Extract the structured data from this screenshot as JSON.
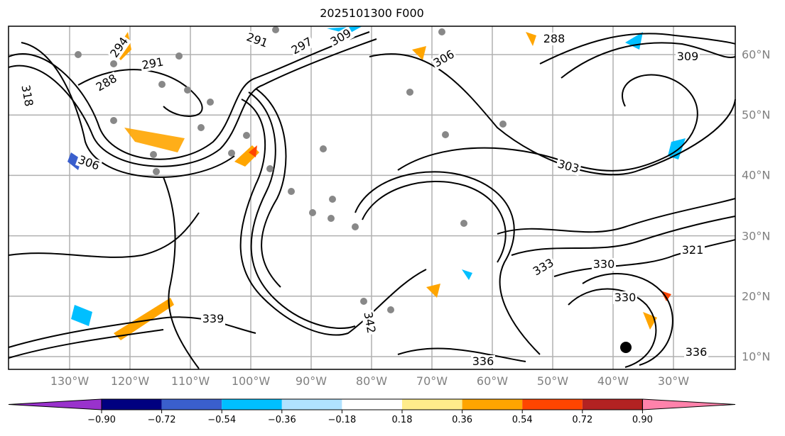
{
  "title": "2025101300 F000",
  "lon_labels": [
    "130°W",
    "120°W",
    "110°W",
    "100°W",
    "90°W",
    "80°W",
    "70°W",
    "60°W",
    "50°W",
    "40°W",
    "30°W"
  ],
  "lat_labels": [
    "60°N",
    "50°N",
    "40°N",
    "30°N",
    "20°N",
    "10°N"
  ],
  "colorbar": {
    "colors": [
      "#9932CC",
      "#000080",
      "#3A5FCD",
      "#00BFFF",
      "#B0E2FF",
      "#FFFFFF",
      "#FFEC8B",
      "#FFA500",
      "#FF4500",
      "#B22222",
      "#FF82AB"
    ],
    "ticks": [
      "−0.90",
      "−0.72",
      "−0.54",
      "−0.36",
      "−0.18",
      "0.18",
      "0.36",
      "0.54",
      "0.72",
      "0.90"
    ]
  },
  "contour_labels": [
    "291",
    "294",
    "288",
    "291",
    "297",
    "309",
    "306",
    "318",
    "306",
    "303",
    "321",
    "330",
    "336",
    "339",
    "342",
    "336",
    "309",
    "288",
    "333",
    "330"
  ]
}
